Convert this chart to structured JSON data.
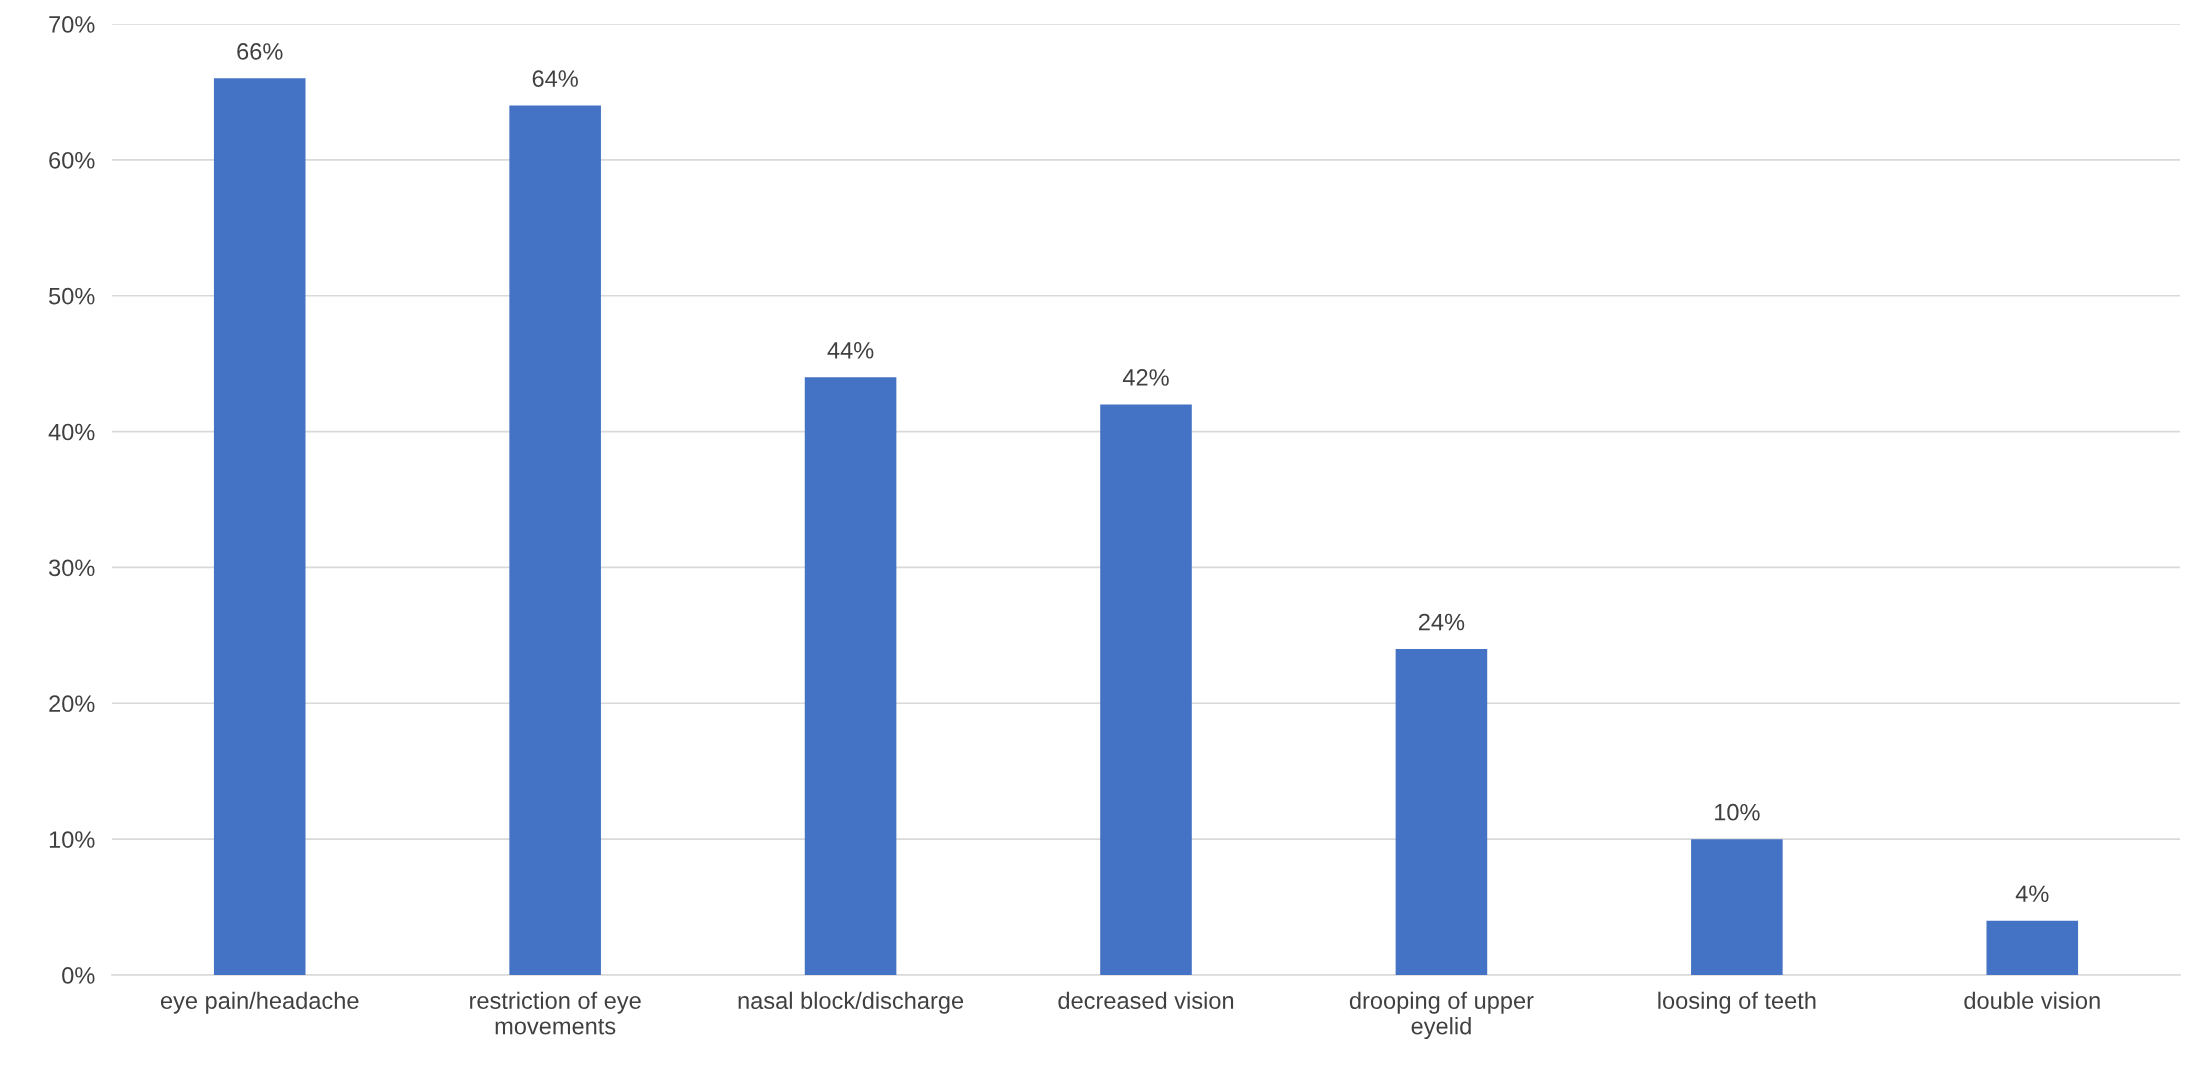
{
  "chart_data": {
    "type": "bar",
    "categories": [
      "eye pain/headache",
      "restriction of eye\nmovements",
      "nasal block/discharge",
      "decreased vision",
      "drooping of upper\neyelid",
      "loosing of teeth",
      "double vision"
    ],
    "values": [
      66,
      64,
      44,
      42,
      24,
      10,
      4
    ],
    "value_labels": [
      "66%",
      "64%",
      "44%",
      "42%",
      "24%",
      "10%",
      "4%"
    ],
    "color": "#4472c4",
    "ylim": [
      0,
      70
    ],
    "yticks": [
      {
        "value": 0,
        "label": "0%"
      },
      {
        "value": 10,
        "label": "10%"
      },
      {
        "value": 20,
        "label": "20%"
      },
      {
        "value": 30,
        "label": "30%"
      },
      {
        "value": 40,
        "label": "40%"
      },
      {
        "value": 50,
        "label": "50%"
      },
      {
        "value": 60,
        "label": "60%"
      },
      {
        "value": 70,
        "label": "70%"
      }
    ],
    "grid": "y",
    "legend": false
  }
}
